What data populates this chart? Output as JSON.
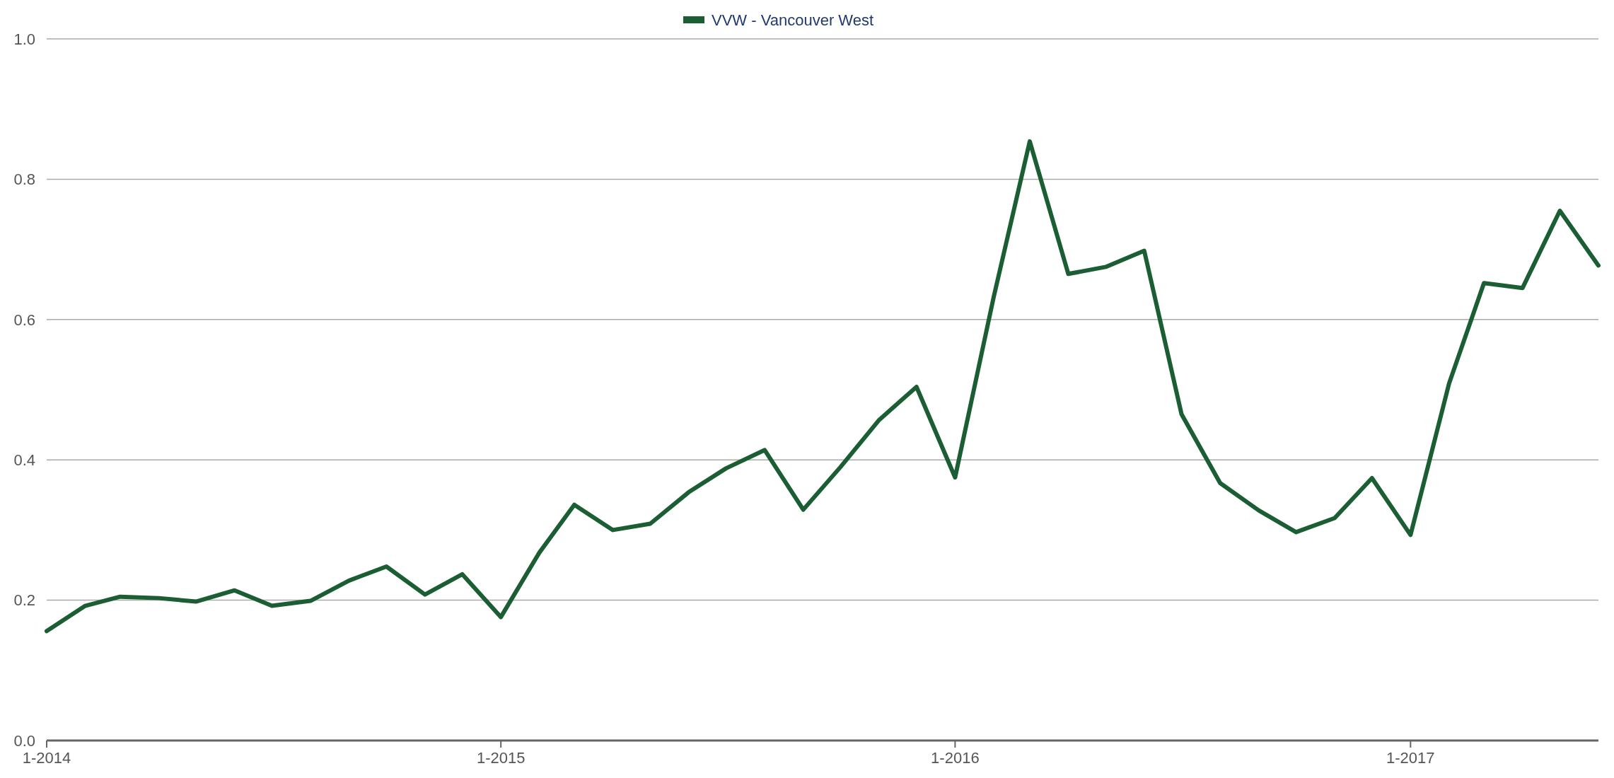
{
  "chart_data": {
    "type": "line",
    "x": [
      "2014-01",
      "2014-02",
      "2014-03",
      "2014-04",
      "2014-05",
      "2014-06",
      "2014-07",
      "2014-08",
      "2014-09",
      "2014-10",
      "2014-11",
      "2014-12",
      "2015-01",
      "2015-02",
      "2015-03",
      "2015-04",
      "2015-05",
      "2015-06",
      "2015-07",
      "2015-08",
      "2015-09",
      "2015-10",
      "2015-11",
      "2015-12",
      "2016-01",
      "2016-02",
      "2016-03",
      "2016-04",
      "2016-05",
      "2016-06",
      "2016-07",
      "2016-08",
      "2016-09",
      "2016-10",
      "2016-11",
      "2016-12",
      "2017-01",
      "2017-02",
      "2017-03",
      "2017-04",
      "2017-05",
      "2017-06"
    ],
    "series": [
      {
        "name": "VVW - Vancouver West",
        "color": "#1b5e34",
        "values": [
          0.156,
          0.192,
          0.205,
          0.203,
          0.198,
          0.214,
          0.192,
          0.199,
          0.228,
          0.248,
          0.208,
          0.237,
          0.176,
          0.268,
          0.336,
          0.3,
          0.309,
          0.354,
          0.388,
          0.414,
          0.329,
          0.39,
          0.457,
          0.504,
          0.375,
          0.632,
          0.854,
          0.665,
          0.675,
          0.698,
          0.465,
          0.367,
          0.328,
          0.297,
          0.317,
          0.374,
          0.293,
          0.509,
          0.652,
          0.645,
          0.755,
          0.677
        ]
      }
    ],
    "xlim": [
      "2014-01",
      "2017-06"
    ],
    "xticks": [
      {
        "value": "2014-01",
        "label": "1-2014"
      },
      {
        "value": "2015-01",
        "label": "1-2015"
      },
      {
        "value": "2016-01",
        "label": "1-2016"
      },
      {
        "value": "2017-01",
        "label": "1-2017"
      }
    ],
    "ylim": [
      0,
      1
    ],
    "yticks": [
      {
        "value": 0,
        "label": "0.0"
      },
      {
        "value": 0.2,
        "label": "0.2"
      },
      {
        "value": 0.4,
        "label": "0.4"
      },
      {
        "value": 0.6,
        "label": "0.6"
      },
      {
        "value": 0.8,
        "label": "0.8"
      },
      {
        "value": 1,
        "label": "1.0"
      }
    ],
    "grid": "y",
    "legend": "top",
    "marker": "none",
    "line_style": "solid"
  }
}
